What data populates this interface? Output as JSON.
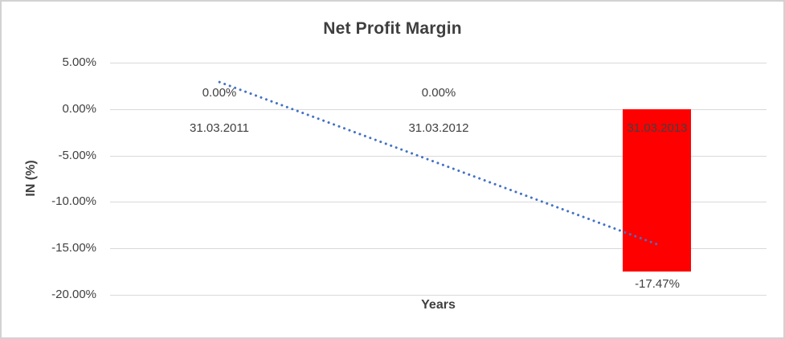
{
  "chart_data": {
    "type": "bar",
    "title": "Net Profit Margin",
    "xlabel": "Years",
    "ylabel": "IN (%)",
    "categories": [
      "31.03.2011",
      "31.03.2012",
      "31.03.2013"
    ],
    "values": [
      0,
      0,
      -17.47
    ],
    "data_labels": [
      "0.00%",
      "0.00%",
      "-17.47%"
    ],
    "y_ticks": [
      {
        "label": "5.00%",
        "value": 5
      },
      {
        "label": "0.00%",
        "value": 0
      },
      {
        "label": "-5.00%",
        "value": -5
      },
      {
        "label": "-10.00%",
        "value": -10
      },
      {
        "label": "-15.00%",
        "value": -15
      },
      {
        "label": "-20.00%",
        "value": -20
      }
    ],
    "ylim": [
      -20,
      5
    ],
    "gridlines": true,
    "legend_position": "none",
    "bar_color": "#ff0000",
    "grid_color": "#d9d9d9",
    "text_color": "#404040",
    "trendline": {
      "type": "linear",
      "style": "dotted",
      "color": "#4472c4",
      "start_value": 2.91,
      "end_value": -14.56
    }
  }
}
